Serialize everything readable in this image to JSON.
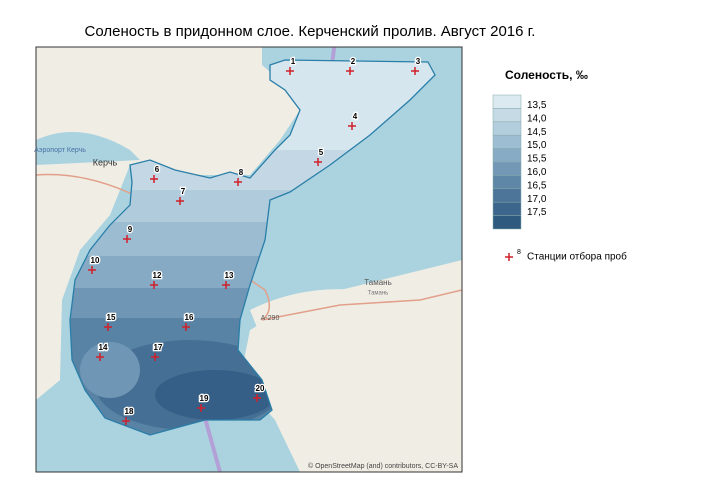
{
  "title": "Соленость в придонном слое. Керченский пролив. Август 2016 г.",
  "legend": {
    "title": "Соленость, ‰",
    "levels": [
      "13,5",
      "14,0",
      "14,5",
      "15,0",
      "15,5",
      "16,0",
      "16,5",
      "17,0",
      "17,5"
    ],
    "station_symbol": "8",
    "station_label": "Станции отбора проб"
  },
  "stations": [
    "1",
    "2",
    "3",
    "4",
    "5",
    "6",
    "7",
    "8",
    "9",
    "10",
    "12",
    "13",
    "15",
    "16",
    "14",
    "17",
    "19",
    "20",
    "18"
  ],
  "map_labels": [
    "Керчь",
    "Аэропорт Керчь",
    "Тамань",
    "A-290",
    "Тамань"
  ],
  "attribution": "© OpenStreetMap (and) contributors, CC-BY-SA"
}
